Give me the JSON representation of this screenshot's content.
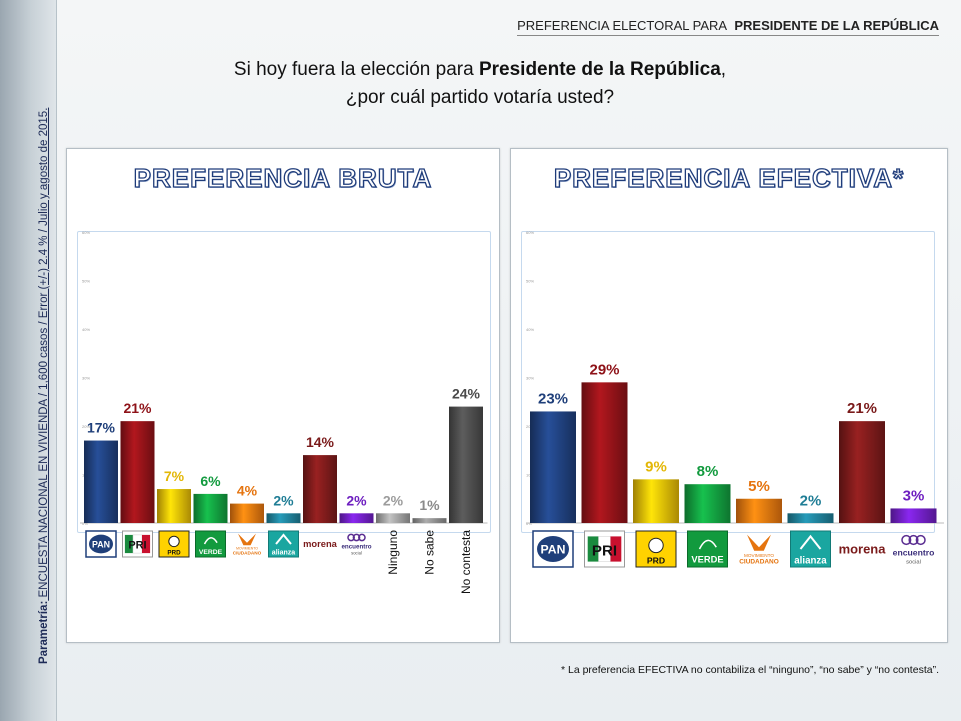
{
  "header": {
    "prefix": "PREFERENCIA ELECTORAL PARA",
    "bold": "PRESIDENTE DE LA REPÚBLICA"
  },
  "question": {
    "line1_a": "Si hoy fuera la elección para ",
    "line1_bold": "Presidente de la República",
    "line1_b": ",",
    "line2": "¿por cuál partido votaría usted?"
  },
  "sidebar": {
    "bold": "Parametría:",
    "rest": " ENCUESTA NACIONAL EN VIVIENDA / 1,600 casos / Error (+/-) 2.4 % / Julio y agosto de 2015."
  },
  "footnote": "* La preferencia EFECTIVA no contabiliza el “ninguno”, “no sabe” y “no contesta”.",
  "chart_data": [
    {
      "type": "bar",
      "title": "PREFERENCIA BRUTA",
      "categories": [
        "PAN",
        "PRI",
        "PRD",
        "VERDE",
        "MOVIMIENTO CIUDADANO",
        "alianza",
        "morena",
        "encuentro social",
        "Ninguno",
        "No sabe",
        "No contesta"
      ],
      "values": [
        17,
        21,
        7,
        6,
        4,
        2,
        14,
        2,
        2,
        1,
        24
      ],
      "labels": [
        "17%",
        "21%",
        "7%",
        "6%",
        "4%",
        "2%",
        "14%",
        "2%",
        "2%",
        "1%",
        "24%"
      ],
      "colors": [
        "#1f3f7a",
        "#8e1218",
        "#e3b706",
        "#129a3e",
        "#e5740f",
        "#1f7d95",
        "#7a1a1a",
        "#6e1fc0",
        "#9c9c9c",
        "#8a8a8a",
        "#4a4a4a"
      ],
      "ylim": [
        0,
        60
      ]
    },
    {
      "type": "bar",
      "title": "PREFERENCIA EFECTIVA*",
      "categories": [
        "PAN",
        "PRI",
        "PRD",
        "VERDE",
        "MOVIMIENTO CIUDADANO",
        "alianza",
        "morena",
        "encuentro social"
      ],
      "values": [
        23,
        29,
        9,
        8,
        5,
        2,
        21,
        3
      ],
      "labels": [
        "23%",
        "29%",
        "9%",
        "8%",
        "5%",
        "2%",
        "21%",
        "3%"
      ],
      "colors": [
        "#1f3f7a",
        "#8e1218",
        "#e3b706",
        "#129a3e",
        "#e5740f",
        "#1f7d95",
        "#7a1a1a",
        "#6e1fc0"
      ],
      "ylim": [
        0,
        60
      ]
    }
  ],
  "logos": {
    "pan": "PAN",
    "pri": "PRI",
    "prd": "PRD",
    "verde": "VERDE",
    "mc_small": "MOVIMIENTO",
    "mc": "CIUDADANO",
    "alianza": "alianza",
    "morena": "morena",
    "encuentro": "encuentro",
    "social": "social"
  },
  "text_categories": [
    "Ninguno",
    "No sabe",
    "No contesta"
  ]
}
